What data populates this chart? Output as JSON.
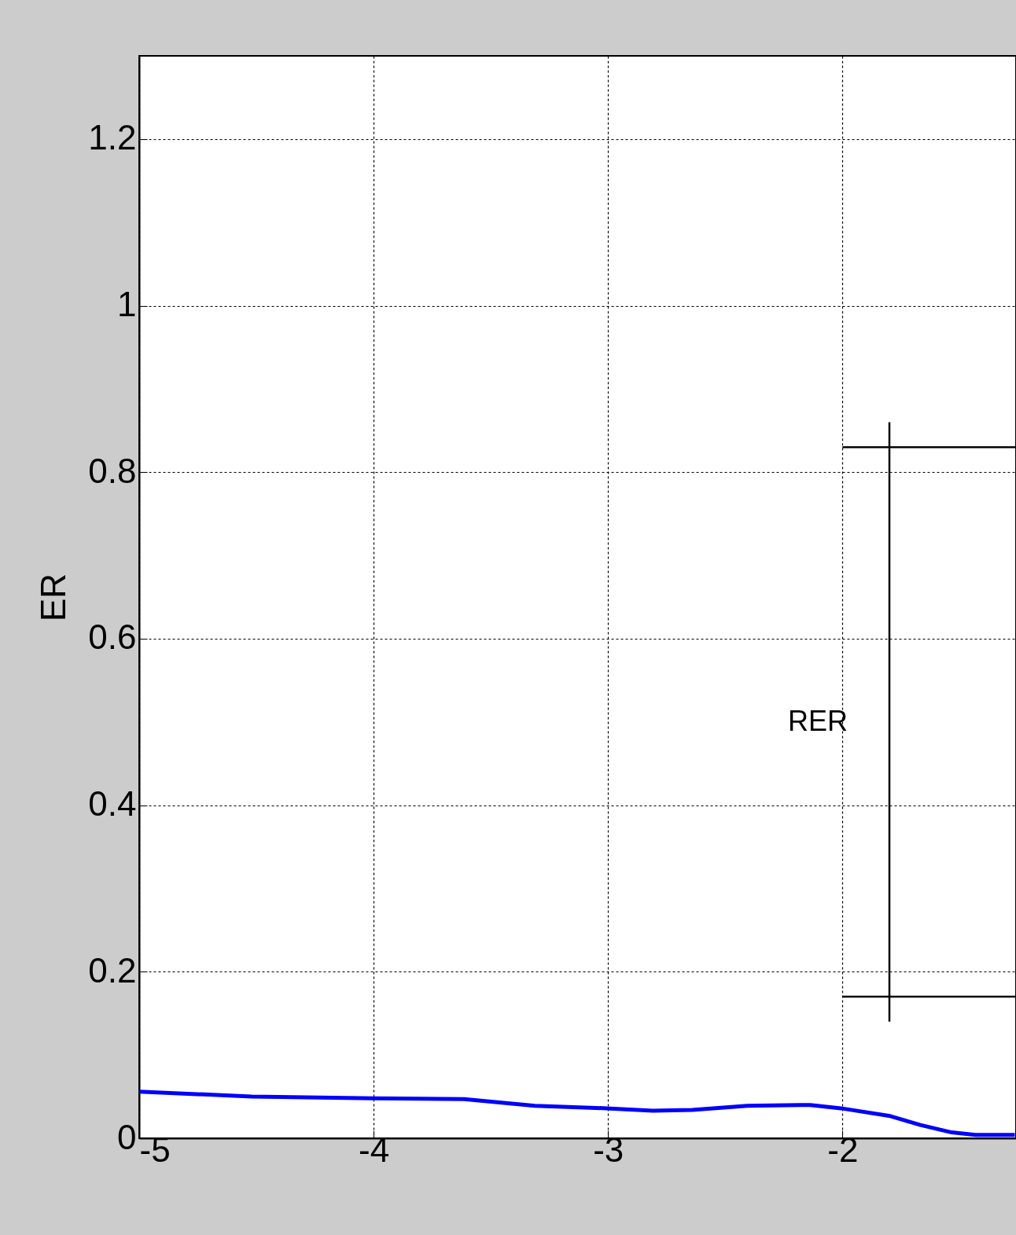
{
  "chart_data": {
    "type": "line",
    "ylabel": "ER",
    "xlim": [
      -5,
      -1.26
    ],
    "ylim": [
      0,
      1.3
    ],
    "xticks": [
      -5,
      -4,
      -3,
      -2
    ],
    "yticks": [
      0,
      0.2,
      0.4,
      0.6,
      0.8,
      1,
      1.2
    ],
    "grid": true,
    "line_style": "solid",
    "marker": "none",
    "series": [
      {
        "color": "#0000ff",
        "x": [
          -5,
          -4.755,
          -4.52,
          -4.0,
          -3.614,
          -3.312,
          -3.007,
          -2.809,
          -2.641,
          -2.406,
          -2.138,
          -2.007,
          -1.802,
          -1.668,
          -1.534,
          -1.433,
          -1.265
        ],
        "values": [
          0.056,
          0.053,
          0.05,
          0.048,
          0.047,
          0.039,
          0.036,
          0.033,
          0.034,
          0.039,
          0.04,
          0.036,
          0.027,
          0.016,
          0.007,
          0.004,
          0.004
        ]
      },
      {
        "color": "#000000",
        "x": [
          -2,
          -1.26
        ],
        "values": [
          0.83,
          0.83
        ]
      },
      {
        "color": "#000000",
        "x": [
          -2,
          -1.26
        ],
        "values": [
          0.17,
          0.17
        ]
      },
      {
        "color": "#000000",
        "x": [
          -1.8,
          -1.8
        ],
        "values": [
          0.14,
          0.86
        ]
      }
    ],
    "annotations": [
      "RER"
    ]
  }
}
